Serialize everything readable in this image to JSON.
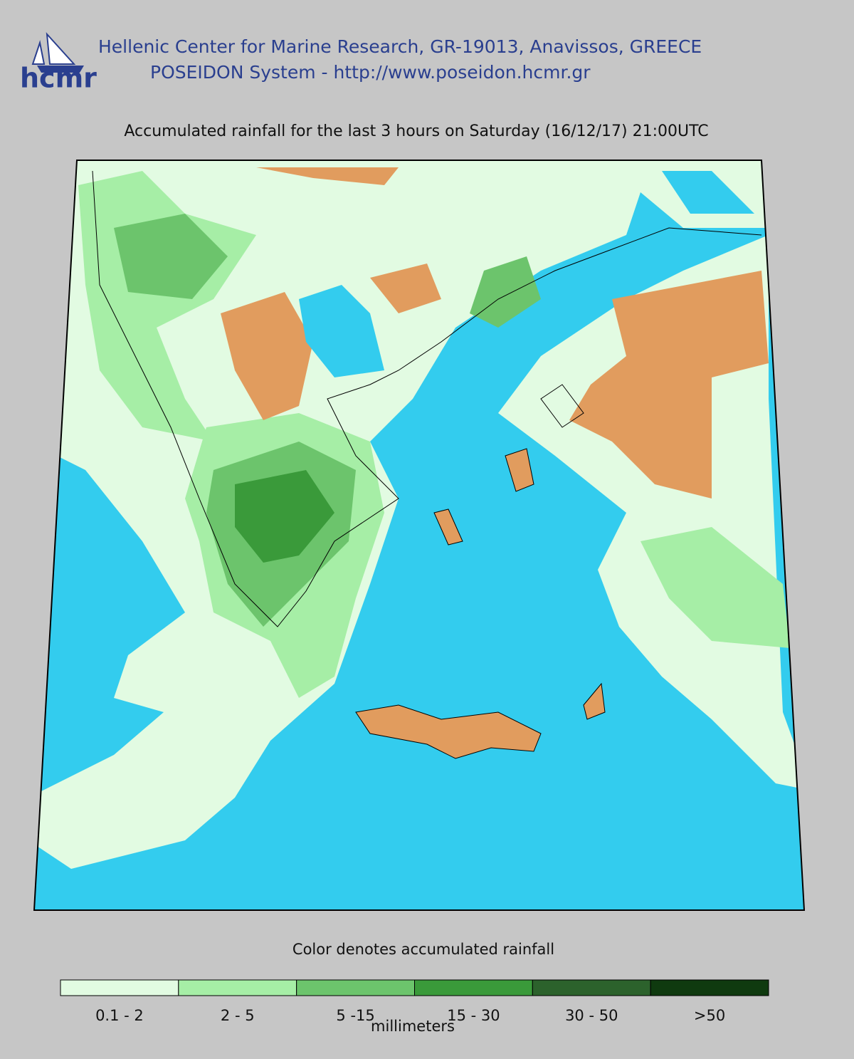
{
  "header": {
    "logo_text": "hcmr",
    "line1": "Hellenic Center for Marine Research, GR-19013, Anavissos, GREECE",
    "line2": "POSEIDON System - http://www.poseidon.hcmr.gr"
  },
  "title": "Accumulated rainfall for the last 3 hours on Saturday (16/12/17) 21:00UTC",
  "legend": {
    "caption": "Color denotes accumulated rainfall",
    "units": "millimeters",
    "classes": [
      {
        "label": "0.1 - 2",
        "color": "#e2fbe2"
      },
      {
        "label": "2 - 5",
        "color": "#a6eea6"
      },
      {
        "label": "5 -15",
        "color": "#6cc46c"
      },
      {
        "label": "15 - 30",
        "color": "#3a9a3a"
      },
      {
        "label": "30 - 50",
        "color": "#2c622c"
      },
      {
        "label": ">50",
        "color": "#0f3a0f"
      }
    ]
  }
}
